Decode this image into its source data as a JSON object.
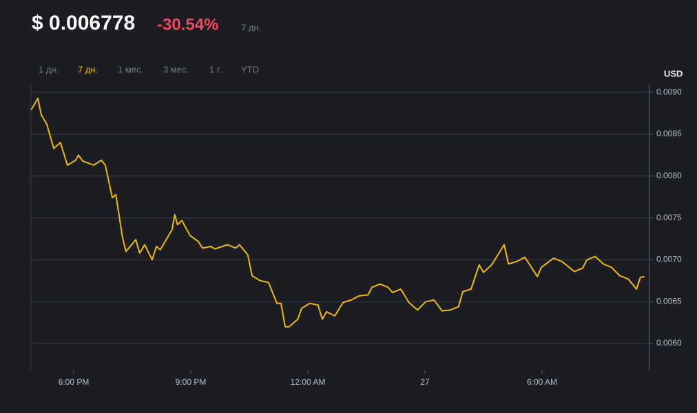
{
  "header": {
    "price": "$ 0.006778",
    "change": "-30.54%",
    "period": "7 дн."
  },
  "ranges": [
    "1 дн.",
    "7 дн.",
    "1 мес.",
    "3 мес.",
    "1 г.",
    "YTD"
  ],
  "active_range": 1,
  "chart_data": {
    "type": "line",
    "y_axis_label": "USD",
    "color": "#f0b90b",
    "grid": true,
    "x": [
      16.91,
      17.08,
      17.17,
      17.31,
      17.49,
      17.66,
      17.84,
      18.05,
      18.12,
      18.23,
      18.51,
      18.71,
      18.81,
      18.99,
      19.08,
      19.25,
      19.34,
      19.59,
      19.69,
      19.82,
      20.01,
      20.12,
      20.22,
      20.52,
      20.59,
      20.66,
      20.77,
      20.98,
      21.19,
      21.3,
      21.51,
      21.62,
      21.94,
      22.15,
      22.25,
      22.46,
      22.57,
      22.78,
      22.99,
      23.21,
      23.31,
      23.42,
      23.52,
      23.74,
      23.84,
      24.05,
      24.26,
      24.37,
      24.48,
      24.69,
      24.9,
      25.11,
      25.32,
      25.54,
      25.64,
      25.85,
      26.06,
      26.17,
      26.38,
      26.59,
      26.81,
      27.02,
      27.23,
      27.44,
      27.65,
      27.86,
      27.97,
      28.18,
      28.39,
      28.5,
      28.71,
      29.03,
      29.14,
      29.35,
      29.56,
      29.88,
      29.98,
      30.3,
      30.51,
      30.83,
      31.04,
      31.15,
      31.36,
      31.57,
      31.78,
      31.99,
      32.21,
      32.42,
      32.52,
      32.63
    ],
    "values": [
      0.00879,
      0.00893,
      0.00873,
      0.00862,
      0.00833,
      0.0084,
      0.00813,
      0.00819,
      0.00825,
      0.00818,
      0.00813,
      0.00819,
      0.00813,
      0.00774,
      0.00778,
      0.00727,
      0.0071,
      0.00724,
      0.00708,
      0.00718,
      0.007,
      0.00716,
      0.00712,
      0.00736,
      0.00754,
      0.00742,
      0.00747,
      0.00729,
      0.00722,
      0.00714,
      0.00716,
      0.00713,
      0.00718,
      0.00714,
      0.00718,
      0.00706,
      0.00681,
      0.00675,
      0.00673,
      0.00648,
      0.00648,
      0.0062,
      0.0062,
      0.00629,
      0.00642,
      0.00648,
      0.00646,
      0.00629,
      0.00638,
      0.00633,
      0.00649,
      0.00652,
      0.00657,
      0.00658,
      0.00667,
      0.00671,
      0.00667,
      0.00661,
      0.00665,
      0.00649,
      0.0064,
      0.0065,
      0.00652,
      0.00639,
      0.0064,
      0.00644,
      0.00662,
      0.00665,
      0.00694,
      0.00685,
      0.00694,
      0.00718,
      0.00695,
      0.00698,
      0.00703,
      0.0068,
      0.00691,
      0.00702,
      0.00698,
      0.00686,
      0.0069,
      0.007,
      0.00704,
      0.00695,
      0.00691,
      0.00681,
      0.00677,
      0.00665,
      0.00679,
      0.0068
    ],
    "xlim": [
      16.906,
      32.753
    ],
    "xticks": [
      {
        "value": 18,
        "label": "6:00 PM"
      },
      {
        "value": 21,
        "label": "9:00 PM"
      },
      {
        "value": 24,
        "label": "12:00 AM"
      },
      27,
      {
        "value": 30,
        "label": "6:00 AM"
      }
    ],
    "ylim": [
      0.00568,
      0.0091
    ],
    "yticks": [
      {
        "value": 0.006,
        "label": "0.0060"
      },
      0.0065,
      {
        "value": 0.007,
        "label": "0.0070"
      },
      0.0075,
      {
        "value": 0.008,
        "label": "0.0080"
      },
      0.0085,
      {
        "value": 0.009,
        "label": "0.0090"
      }
    ]
  }
}
